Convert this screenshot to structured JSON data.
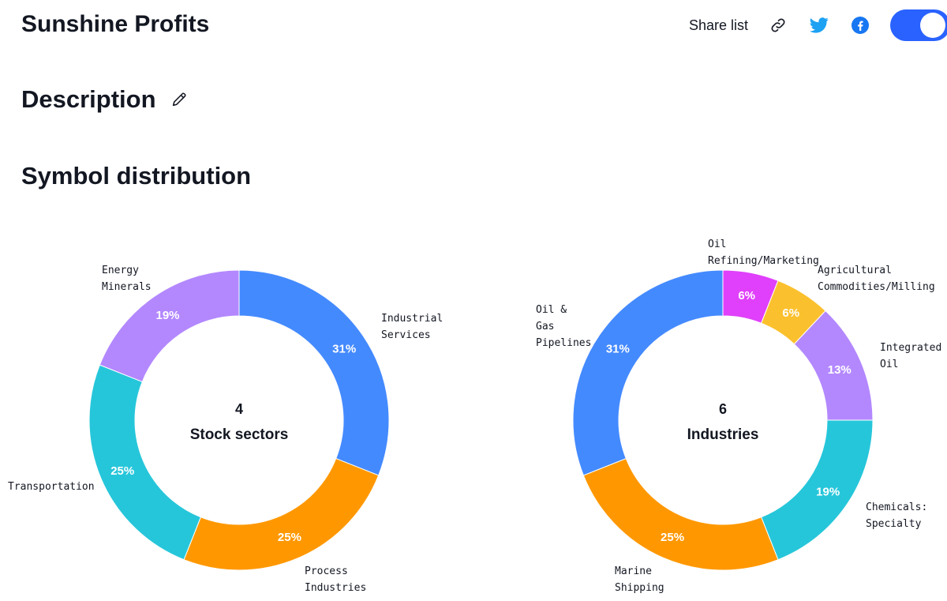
{
  "header": {
    "title": "Sunshine Profits",
    "share_label": "Share list",
    "icons": [
      "link-icon",
      "twitter-icon",
      "facebook-icon"
    ],
    "toggle_on": true
  },
  "description": {
    "heading": "Description",
    "icon": "pencil-icon"
  },
  "symbol_distribution": {
    "heading": "Symbol distribution"
  },
  "colors": {
    "accent": "#2962ff",
    "twitter": "#1da1f2",
    "facebook": "#1877f2"
  },
  "chart_data": [
    {
      "type": "pie",
      "donut": true,
      "center_count": "4",
      "center_label": "Stock sectors",
      "slices": [
        {
          "label": "Industrial\nServices",
          "value": 31,
          "pct_text": "31%",
          "color": "#448aff"
        },
        {
          "label": "Process\nIndustries",
          "value": 25,
          "pct_text": "25%",
          "color": "#ff9800"
        },
        {
          "label": "Transportation",
          "value": 25,
          "pct_text": "25%",
          "color": "#26c6da"
        },
        {
          "label": "Energy\nMinerals",
          "value": 19,
          "pct_text": "19%",
          "color": "#b388ff"
        }
      ]
    },
    {
      "type": "pie",
      "donut": true,
      "center_count": "6",
      "center_label": "Industries",
      "slices": [
        {
          "label": "Oil\nRefining/Marketing",
          "value": 6,
          "pct_text": "6%",
          "color": "#e040fb"
        },
        {
          "label": "Agricultural\nCommodities/Milling",
          "value": 6,
          "pct_text": "6%",
          "color": "#fbc02d"
        },
        {
          "label": "Integrated\nOil",
          "value": 13,
          "pct_text": "13%",
          "color": "#b388ff"
        },
        {
          "label": "Chemicals:\nSpecialty",
          "value": 19,
          "pct_text": "19%",
          "color": "#26c6da"
        },
        {
          "label": "Marine\nShipping",
          "value": 25,
          "pct_text": "25%",
          "color": "#ff9800"
        },
        {
          "label": "Oil &\nGas\nPipelines",
          "value": 31,
          "pct_text": "31%",
          "color": "#448aff"
        }
      ]
    }
  ]
}
